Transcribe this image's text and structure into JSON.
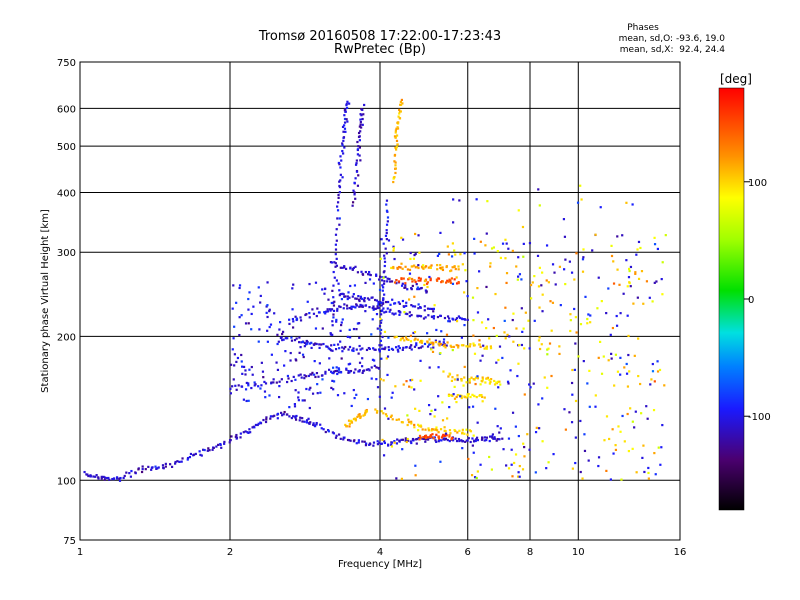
{
  "chart_data": {
    "type": "scatter",
    "title": "Tromsø 20160508 17:22:00-17:23:43",
    "subtitle": "RwPretec (Bp)",
    "xlabel": "Frequency [MHz]",
    "ylabel": "Stationary phase Virtual Height [km]",
    "x_scale": "log",
    "y_scale": "log",
    "xlim": [
      1,
      16
    ],
    "ylim": [
      75,
      750
    ],
    "x_ticks": [
      1,
      2,
      4,
      6,
      8,
      10,
      16
    ],
    "x_gridlines": [
      2,
      4,
      6,
      8,
      10
    ],
    "y_ticks": [
      75,
      100,
      200,
      300,
      400,
      500,
      600,
      750
    ],
    "y_gridlines": [
      100,
      200,
      300,
      400,
      500,
      600
    ],
    "grid": true,
    "stats": {
      "header": "Phases",
      "line_o": "mean, sd,O: -93.6, 19.0",
      "line_x": "mean, sd,X:  92.4, 24.4"
    },
    "colorbar": {
      "label": "[deg]",
      "range": [
        -180,
        180
      ],
      "ticks": [
        100,
        0,
        -100
      ],
      "placement": "right"
    },
    "traces": [
      {
        "name": "o-trace-low",
        "phase": -110,
        "spread": 0.012,
        "points": [
          [
            1.02,
            103
          ],
          [
            1.1,
            101
          ],
          [
            1.2,
            101
          ],
          [
            1.35,
            106
          ],
          [
            1.5,
            107
          ],
          [
            1.7,
            113
          ],
          [
            1.9,
            118
          ],
          [
            2.1,
            124
          ],
          [
            2.3,
            132
          ],
          [
            2.55,
            138
          ],
          [
            2.8,
            134
          ],
          [
            3.0,
            130
          ],
          [
            3.4,
            122
          ],
          [
            3.8,
            119
          ],
          [
            4.2,
            120
          ],
          [
            4.6,
            121
          ],
          [
            5.0,
            122
          ],
          [
            5.5,
            121
          ],
          [
            6.0,
            121
          ],
          [
            6.5,
            122
          ],
          [
            7.0,
            122
          ]
        ]
      },
      {
        "name": "o-trace-F1",
        "phase": -110,
        "spread": 0.015,
        "points": [
          [
            2.0,
            155
          ],
          [
            2.4,
            160
          ],
          [
            2.8,
            165
          ],
          [
            3.2,
            168
          ],
          [
            3.6,
            170
          ],
          [
            4.0,
            172
          ]
        ]
      },
      {
        "name": "o-trace-F1b",
        "phase": -105,
        "spread": 0.015,
        "points": [
          [
            2.5,
            200
          ],
          [
            2.8,
            195
          ],
          [
            3.1,
            190
          ],
          [
            3.5,
            188
          ],
          [
            4.0,
            188
          ],
          [
            4.5,
            190
          ],
          [
            5.0,
            192
          ],
          [
            5.5,
            195
          ]
        ]
      },
      {
        "name": "o-trace-F2-lower",
        "phase": -105,
        "spread": 0.015,
        "points": [
          [
            2.6,
            215
          ],
          [
            3.0,
            225
          ],
          [
            3.4,
            232
          ],
          [
            3.8,
            232
          ],
          [
            4.2,
            225
          ],
          [
            4.8,
            220
          ],
          [
            5.5,
            218
          ],
          [
            6.0,
            216
          ]
        ]
      },
      {
        "name": "o-trace-F2-upper",
        "phase": -110,
        "spread": 0.015,
        "points": [
          [
            3.2,
            285
          ],
          [
            3.6,
            275
          ],
          [
            4.0,
            265
          ],
          [
            4.5,
            255
          ],
          [
            5.0,
            250
          ]
        ]
      },
      {
        "name": "o-trace-F2-mid",
        "phase": -108,
        "spread": 0.014,
        "points": [
          [
            3.3,
            245
          ],
          [
            3.7,
            240
          ],
          [
            4.1,
            236
          ],
          [
            4.6,
            232
          ],
          [
            5.2,
            228
          ]
        ]
      },
      {
        "name": "o-trace-column",
        "phase": -105,
        "spread": 0.012,
        "points": [
          [
            3.2,
            200
          ],
          [
            3.25,
            280
          ],
          [
            3.3,
            380
          ],
          [
            3.35,
            480
          ],
          [
            3.4,
            560
          ],
          [
            3.45,
            630
          ]
        ]
      },
      {
        "name": "o-trace-column2",
        "phase": -110,
        "spread": 0.012,
        "points": [
          [
            3.55,
            380
          ],
          [
            3.6,
            460
          ],
          [
            3.65,
            540
          ],
          [
            3.7,
            610
          ]
        ]
      },
      {
        "name": "o-trace-column3",
        "phase": -100,
        "spread": 0.01,
        "points": [
          [
            4.0,
            180
          ],
          [
            4.05,
            240
          ],
          [
            4.1,
            300
          ],
          [
            4.15,
            390
          ]
        ]
      },
      {
        "name": "x-trace-1",
        "phase": 105,
        "spread": 0.015,
        "points": [
          [
            3.9,
            140
          ],
          [
            4.5,
            132
          ],
          [
            5.0,
            128
          ],
          [
            5.5,
            126
          ],
          [
            6.2,
            125
          ]
        ]
      },
      {
        "name": "x-trace-2",
        "phase": 110,
        "spread": 0.015,
        "points": [
          [
            4.3,
            200
          ],
          [
            4.8,
            195
          ],
          [
            5.3,
            192
          ],
          [
            6.0,
            190
          ],
          [
            6.8,
            188
          ]
        ]
      },
      {
        "name": "x-trace-3",
        "phase": 115,
        "spread": 0.015,
        "points": [
          [
            4.2,
            280
          ],
          [
            4.7,
            280
          ],
          [
            5.2,
            279
          ],
          [
            5.8,
            278
          ]
        ]
      },
      {
        "name": "x-trace-4",
        "phase": 150,
        "spread": 0.015,
        "points": [
          [
            4.3,
            262
          ],
          [
            4.8,
            262
          ],
          [
            5.3,
            261
          ],
          [
            5.8,
            260
          ]
        ]
      },
      {
        "name": "x-trace-5",
        "phase": 100,
        "spread": 0.015,
        "points": [
          [
            5.5,
            165
          ],
          [
            6.0,
            163
          ],
          [
            6.5,
            162
          ],
          [
            7.0,
            160
          ]
        ]
      },
      {
        "name": "x-trace-6",
        "phase": 100,
        "spread": 0.015,
        "points": [
          [
            5.5,
            150
          ],
          [
            6.0,
            150
          ],
          [
            6.5,
            150
          ]
        ]
      },
      {
        "name": "x-trace-column",
        "phase": 110,
        "spread": 0.012,
        "points": [
          [
            4.25,
            420
          ],
          [
            4.3,
            500
          ],
          [
            4.35,
            560
          ],
          [
            4.45,
            630
          ]
        ]
      },
      {
        "name": "x-trace-low",
        "phase": 150,
        "spread": 0.012,
        "points": [
          [
            4.8,
            123
          ],
          [
            5.2,
            124
          ],
          [
            5.6,
            123
          ]
        ]
      },
      {
        "name": "x-trace-early",
        "phase": 110,
        "spread": 0.012,
        "points": [
          [
            3.4,
            130
          ],
          [
            3.6,
            135
          ],
          [
            3.8,
            140
          ]
        ]
      }
    ],
    "scatter_regions": [
      {
        "name": "diffuse-mixed",
        "xlim": [
          4.0,
          15.0
        ],
        "ylim": [
          100,
          330
        ],
        "count": 460,
        "phase_mix": "mixed"
      },
      {
        "name": "diffuse-low-o",
        "xlim": [
          2.0,
          4.0
        ],
        "ylim": [
          140,
          260
        ],
        "count": 220,
        "phase_mix": "o"
      },
      {
        "name": "sparse-high",
        "xlim": [
          5.0,
          13.0
        ],
        "ylim": [
          250,
          420
        ],
        "count": 40,
        "phase_mix": "mixed"
      }
    ]
  }
}
